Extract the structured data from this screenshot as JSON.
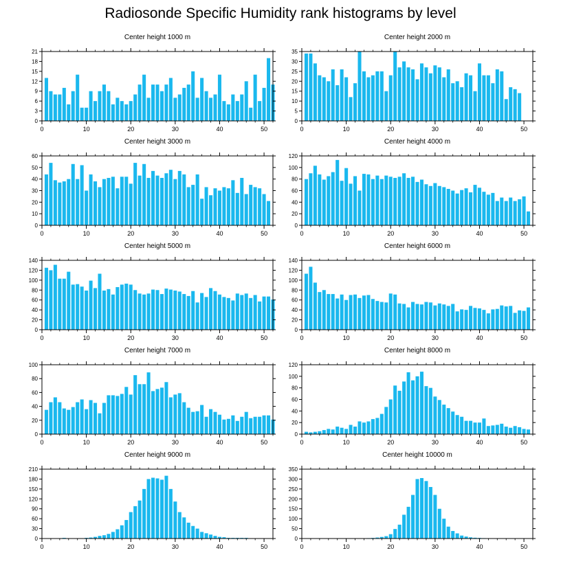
{
  "title": "Radiosonde Specific Humidity rank histograms by level",
  "chart_data": [
    {
      "type": "bar",
      "title": "Center height 1000 m",
      "xticks": [
        0,
        10,
        20,
        30,
        40,
        50
      ],
      "yticks": [
        0,
        3,
        6,
        9,
        12,
        15,
        18,
        21
      ],
      "xlim": [
        0,
        52
      ],
      "ylim": [
        0,
        21
      ],
      "ranks": [
        1,
        2,
        3,
        4,
        5,
        6,
        7,
        8,
        9,
        10,
        11,
        12,
        13,
        14,
        15,
        16,
        17,
        18,
        19,
        20,
        21,
        22,
        23,
        24,
        25,
        26,
        27,
        28,
        29,
        30,
        31,
        32,
        33,
        34,
        35,
        36,
        37,
        38,
        39,
        40,
        41,
        42,
        43,
        44,
        45,
        46,
        47,
        48,
        49,
        50,
        51,
        52
      ],
      "values": [
        13,
        9,
        8,
        8,
        10,
        5,
        9,
        14,
        4,
        4,
        9,
        6,
        9,
        11,
        9,
        5,
        7,
        6,
        5,
        6,
        8,
        11,
        14,
        7,
        11,
        11,
        9,
        11,
        13,
        7,
        8,
        10,
        11,
        15,
        7,
        13,
        9,
        7,
        8,
        14,
        6,
        5,
        8,
        6,
        8,
        12,
        4,
        14,
        6,
        10,
        19,
        11
      ]
    },
    {
      "type": "bar",
      "title": "Center height 2000 m",
      "xticks": [
        0,
        10,
        20,
        30,
        40,
        50
      ],
      "yticks": [
        0,
        5,
        10,
        15,
        20,
        25,
        30,
        35
      ],
      "xlim": [
        0,
        52
      ],
      "ylim": [
        0,
        35
      ],
      "ranks": [
        1,
        2,
        3,
        4,
        5,
        6,
        7,
        8,
        9,
        10,
        11,
        12,
        13,
        14,
        15,
        16,
        17,
        18,
        19,
        20,
        21,
        22,
        23,
        24,
        25,
        26,
        27,
        28,
        29,
        30,
        31,
        32,
        33,
        34,
        35,
        36,
        37,
        38,
        39,
        40,
        41,
        42,
        43,
        44,
        45,
        46,
        47,
        48,
        49,
        50,
        51,
        52
      ],
      "values": [
        34,
        34,
        29,
        23,
        22,
        20,
        26,
        18,
        26,
        22,
        12,
        19,
        35,
        25,
        22,
        23,
        25,
        25,
        15,
        23,
        35,
        27,
        30,
        27,
        26,
        21,
        29,
        27,
        24,
        28,
        27,
        22,
        26,
        19,
        20,
        17,
        24,
        23,
        15,
        29,
        23,
        23,
        19,
        26,
        25,
        11,
        17,
        16,
        14,
        0,
        0,
        0
      ]
    },
    {
      "type": "bar",
      "title": "Center height 3000 m",
      "xticks": [
        0,
        10,
        20,
        30,
        40,
        50
      ],
      "yticks": [
        0,
        10,
        20,
        30,
        40,
        50,
        60
      ],
      "xlim": [
        0,
        52
      ],
      "ylim": [
        0,
        60
      ],
      "ranks": [
        1,
        2,
        3,
        4,
        5,
        6,
        7,
        8,
        9,
        10,
        11,
        12,
        13,
        14,
        15,
        16,
        17,
        18,
        19,
        20,
        21,
        22,
        23,
        24,
        25,
        26,
        27,
        28,
        29,
        30,
        31,
        32,
        33,
        34,
        35,
        36,
        37,
        38,
        39,
        40,
        41,
        42,
        43,
        44,
        45,
        46,
        47,
        48,
        49,
        50,
        51,
        52
      ],
      "values": [
        44,
        54,
        39,
        37,
        38,
        40,
        53,
        40,
        52,
        30,
        44,
        38,
        33,
        40,
        41,
        42,
        32,
        42,
        42,
        36,
        54,
        43,
        53,
        41,
        47,
        43,
        41,
        45,
        48,
        40,
        47,
        44,
        33,
        35,
        44,
        23,
        33,
        26,
        32,
        30,
        33,
        32,
        39,
        28,
        41,
        27,
        35,
        33,
        32,
        27,
        21,
        0
      ]
    },
    {
      "type": "bar",
      "title": "Center height 4000 m",
      "xticks": [
        0,
        10,
        20,
        30,
        40,
        50
      ],
      "yticks": [
        0,
        20,
        40,
        60,
        80,
        100,
        120
      ],
      "xlim": [
        0,
        52
      ],
      "ylim": [
        0,
        120
      ],
      "ranks": [
        1,
        2,
        3,
        4,
        5,
        6,
        7,
        8,
        9,
        10,
        11,
        12,
        13,
        14,
        15,
        16,
        17,
        18,
        19,
        20,
        21,
        22,
        23,
        24,
        25,
        26,
        27,
        28,
        29,
        30,
        31,
        32,
        33,
        34,
        35,
        36,
        37,
        38,
        39,
        40,
        41,
        42,
        43,
        44,
        45,
        46,
        47,
        48,
        49,
        50,
        51,
        52
      ],
      "values": [
        80,
        90,
        103,
        88,
        79,
        85,
        92,
        113,
        77,
        99,
        72,
        85,
        60,
        89,
        88,
        80,
        86,
        80,
        86,
        84,
        82,
        84,
        90,
        82,
        84,
        75,
        79,
        71,
        68,
        73,
        68,
        66,
        63,
        60,
        55,
        61,
        64,
        57,
        70,
        65,
        58,
        53,
        56,
        42,
        48,
        42,
        48,
        42,
        45,
        50,
        24,
        0
      ]
    },
    {
      "type": "bar",
      "title": "Center height 5000 m",
      "xticks": [
        0,
        10,
        20,
        30,
        40,
        50
      ],
      "yticks": [
        0,
        20,
        40,
        60,
        80,
        100,
        120,
        140
      ],
      "xlim": [
        0,
        52
      ],
      "ylim": [
        0,
        140
      ],
      "ranks": [
        1,
        2,
        3,
        4,
        5,
        6,
        7,
        8,
        9,
        10,
        11,
        12,
        13,
        14,
        15,
        16,
        17,
        18,
        19,
        20,
        21,
        22,
        23,
        24,
        25,
        26,
        27,
        28,
        29,
        30,
        31,
        32,
        33,
        34,
        35,
        36,
        37,
        38,
        39,
        40,
        41,
        42,
        43,
        44,
        45,
        46,
        47,
        48,
        49,
        50,
        51,
        52
      ],
      "values": [
        125,
        120,
        131,
        103,
        103,
        117,
        91,
        92,
        87,
        79,
        99,
        84,
        113,
        79,
        82,
        71,
        86,
        91,
        93,
        91,
        80,
        73,
        71,
        73,
        81,
        80,
        72,
        83,
        81,
        79,
        77,
        72,
        68,
        78,
        55,
        74,
        66,
        84,
        78,
        71,
        66,
        64,
        59,
        73,
        70,
        73,
        64,
        70,
        57,
        67,
        67,
        61
      ]
    },
    {
      "type": "bar",
      "title": "Center height 6000 m",
      "xticks": [
        0,
        10,
        20,
        30,
        40,
        50
      ],
      "yticks": [
        0,
        20,
        40,
        60,
        80,
        100,
        120,
        140
      ],
      "xlim": [
        0,
        52
      ],
      "ylim": [
        0,
        140
      ],
      "ranks": [
        1,
        2,
        3,
        4,
        5,
        6,
        7,
        8,
        9,
        10,
        11,
        12,
        13,
        14,
        15,
        16,
        17,
        18,
        19,
        20,
        21,
        22,
        23,
        24,
        25,
        26,
        27,
        28,
        29,
        30,
        31,
        32,
        33,
        34,
        35,
        36,
        37,
        38,
        39,
        40,
        41,
        42,
        43,
        44,
        45,
        46,
        47,
        48,
        49,
        50,
        51,
        52
      ],
      "values": [
        113,
        127,
        95,
        76,
        80,
        72,
        72,
        63,
        71,
        60,
        70,
        71,
        64,
        69,
        70,
        62,
        58,
        56,
        55,
        73,
        71,
        53,
        52,
        45,
        56,
        52,
        51,
        56,
        55,
        49,
        53,
        51,
        48,
        52,
        37,
        41,
        40,
        48,
        44,
        43,
        40,
        33,
        41,
        42,
        49,
        47,
        48,
        34,
        39,
        38,
        45,
        0
      ]
    },
    {
      "type": "bar",
      "title": "Center height 7000 m",
      "xticks": [
        0,
        10,
        20,
        30,
        40,
        50
      ],
      "yticks": [
        0,
        20,
        40,
        60,
        80,
        100
      ],
      "xlim": [
        0,
        52
      ],
      "ylim": [
        0,
        100
      ],
      "ranks": [
        1,
        2,
        3,
        4,
        5,
        6,
        7,
        8,
        9,
        10,
        11,
        12,
        13,
        14,
        15,
        16,
        17,
        18,
        19,
        20,
        21,
        22,
        23,
        24,
        25,
        26,
        27,
        28,
        29,
        30,
        31,
        32,
        33,
        34,
        35,
        36,
        37,
        38,
        39,
        40,
        41,
        42,
        43,
        44,
        45,
        46,
        47,
        48,
        49,
        50,
        51,
        52
      ],
      "values": [
        35,
        46,
        53,
        46,
        37,
        35,
        39,
        46,
        50,
        36,
        49,
        45,
        30,
        45,
        56,
        56,
        55,
        58,
        68,
        57,
        85,
        72,
        72,
        89,
        62,
        65,
        67,
        75,
        53,
        57,
        59,
        46,
        38,
        32,
        33,
        42,
        25,
        36,
        32,
        28,
        21,
        22,
        27,
        19,
        25,
        32,
        23,
        25,
        25,
        27,
        27,
        21
      ]
    },
    {
      "type": "bar",
      "title": "Center height 8000 m",
      "xticks": [
        0,
        10,
        20,
        30,
        40,
        50
      ],
      "yticks": [
        0,
        20,
        40,
        60,
        80,
        100,
        120
      ],
      "xlim": [
        0,
        52
      ],
      "ylim": [
        0,
        120
      ],
      "ranks": [
        1,
        2,
        3,
        4,
        5,
        6,
        7,
        8,
        9,
        10,
        11,
        12,
        13,
        14,
        15,
        16,
        17,
        18,
        19,
        20,
        21,
        22,
        23,
        24,
        25,
        26,
        27,
        28,
        29,
        30,
        31,
        32,
        33,
        34,
        35,
        36,
        37,
        38,
        39,
        40,
        41,
        42,
        43,
        44,
        45,
        46,
        47,
        48,
        49,
        50,
        51,
        52
      ],
      "values": [
        4,
        3,
        4,
        5,
        7,
        9,
        8,
        13,
        11,
        9,
        16,
        13,
        22,
        20,
        22,
        26,
        28,
        35,
        47,
        60,
        84,
        75,
        91,
        107,
        93,
        100,
        108,
        83,
        80,
        65,
        59,
        51,
        45,
        39,
        33,
        30,
        23,
        23,
        20,
        20,
        27,
        14,
        15,
        16,
        18,
        13,
        11,
        14,
        12,
        9,
        8,
        0
      ]
    },
    {
      "type": "bar",
      "title": "Center height 9000 m",
      "xticks": [
        0,
        10,
        20,
        30,
        40,
        50
      ],
      "yticks": [
        0,
        30,
        60,
        90,
        120,
        150,
        180,
        210
      ],
      "xlim": [
        0,
        52
      ],
      "ylim": [
        0,
        210
      ],
      "ranks": [
        1,
        2,
        3,
        4,
        5,
        6,
        7,
        8,
        9,
        10,
        11,
        12,
        13,
        14,
        15,
        16,
        17,
        18,
        19,
        20,
        21,
        22,
        23,
        24,
        25,
        26,
        27,
        28,
        29,
        30,
        31,
        32,
        33,
        34,
        35,
        36,
        37,
        38,
        39,
        40,
        41,
        42,
        43,
        44,
        45,
        46,
        47,
        48,
        49,
        50,
        51,
        52
      ],
      "values": [
        1,
        1,
        1,
        1,
        2,
        1,
        1,
        1,
        1,
        2,
        3,
        5,
        8,
        10,
        14,
        20,
        28,
        40,
        56,
        80,
        98,
        115,
        150,
        180,
        184,
        182,
        178,
        190,
        150,
        112,
        80,
        64,
        48,
        38,
        30,
        20,
        16,
        12,
        8,
        5,
        4,
        2,
        2,
        2,
        2,
        2,
        1,
        1,
        1,
        1,
        1,
        0
      ]
    },
    {
      "type": "bar",
      "title": "Center height 10000 m",
      "xticks": [
        0,
        10,
        20,
        30,
        40,
        50
      ],
      "yticks": [
        0,
        50,
        100,
        150,
        200,
        250,
        300,
        350
      ],
      "xlim": [
        0,
        52
      ],
      "ylim": [
        0,
        350
      ],
      "ranks": [
        1,
        2,
        3,
        4,
        5,
        6,
        7,
        8,
        9,
        10,
        11,
        12,
        13,
        14,
        15,
        16,
        17,
        18,
        19,
        20,
        21,
        22,
        23,
        24,
        25,
        26,
        27,
        28,
        29,
        30,
        31,
        32,
        33,
        34,
        35,
        36,
        37,
        38,
        39,
        40,
        41,
        42,
        43,
        44,
        45,
        46,
        47,
        48,
        49,
        50,
        51,
        52
      ],
      "values": [
        0,
        0,
        0,
        0,
        0,
        0,
        0,
        0,
        0,
        0,
        1,
        1,
        1,
        1,
        2,
        3,
        5,
        8,
        12,
        22,
        48,
        70,
        120,
        160,
        220,
        300,
        305,
        290,
        260,
        220,
        150,
        100,
        60,
        38,
        26,
        15,
        10,
        6,
        4,
        3,
        2,
        1,
        1,
        1,
        1,
        1,
        0,
        0,
        0,
        0,
        0,
        0
      ]
    }
  ],
  "style": {
    "bar_color": "#1ab8ee",
    "axis_color": "#000000"
  }
}
